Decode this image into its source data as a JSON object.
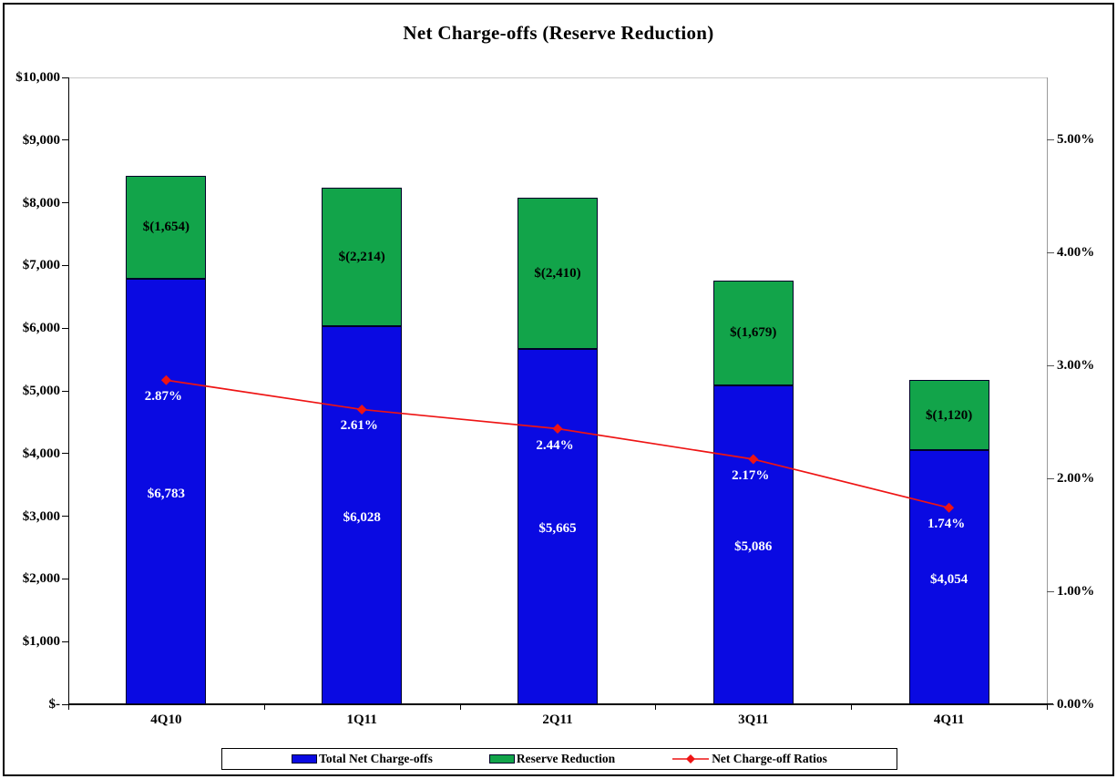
{
  "title": "Net Charge-offs (Reserve Reduction)",
  "chart_data": {
    "type": "bar",
    "subtype": "stacked-bar-with-line-overlay",
    "title": "Net Charge-offs (Reserve Reduction)",
    "categories": [
      "4Q10",
      "1Q11",
      "2Q11",
      "3Q11",
      "4Q11"
    ],
    "series": [
      {
        "name": "Total Net Charge-offs",
        "type": "bar",
        "color": "#0a0ae2",
        "label_color": "#ffffff",
        "values": [
          6783,
          6028,
          5665,
          5086,
          4054
        ],
        "labels": [
          "$6,783",
          "$6,028",
          "$5,665",
          "$5,086",
          "$4,054"
        ]
      },
      {
        "name": "Reserve Reduction",
        "type": "bar",
        "color": "#12a44a",
        "label_color": "#000000",
        "values": [
          1654,
          2214,
          2410,
          1679,
          1120
        ],
        "labels": [
          "$(1,654)",
          "$(2,214)",
          "$(2,410)",
          "$(1,679)",
          "$(1,120)"
        ]
      },
      {
        "name": "Net Charge-off Ratios",
        "type": "line",
        "color": "#ee1414",
        "label_color": "#ffffff",
        "values": [
          2.87,
          2.61,
          2.44,
          2.17,
          1.74
        ],
        "labels": [
          "2.87%",
          "2.61%",
          "2.44%",
          "2.17%",
          "1.74%"
        ]
      }
    ],
    "left_axis": {
      "ticks": [
        "$10,000",
        "$9,000",
        "$8,000",
        "$7,000",
        "$6,000",
        "$5,000",
        "$4,000",
        "$3,000",
        "$2,000",
        "$1,000",
        "$-"
      ],
      "values": [
        10000,
        9000,
        8000,
        7000,
        6000,
        5000,
        4000,
        3000,
        2000,
        1000,
        0
      ],
      "min": 0,
      "max": 10000
    },
    "right_axis": {
      "ticks": [
        "5.00%",
        "4.00%",
        "3.00%",
        "2.00%",
        "1.00%",
        "0.00%"
      ],
      "values": [
        5,
        4,
        3,
        2,
        1,
        0
      ],
      "min": 0,
      "max": 5.55
    },
    "legend": {
      "entries": [
        "Total Net Charge-offs",
        "Reserve Reduction",
        "Net Charge-off Ratios"
      ],
      "position": "bottom"
    },
    "grid": "top-line-only"
  }
}
